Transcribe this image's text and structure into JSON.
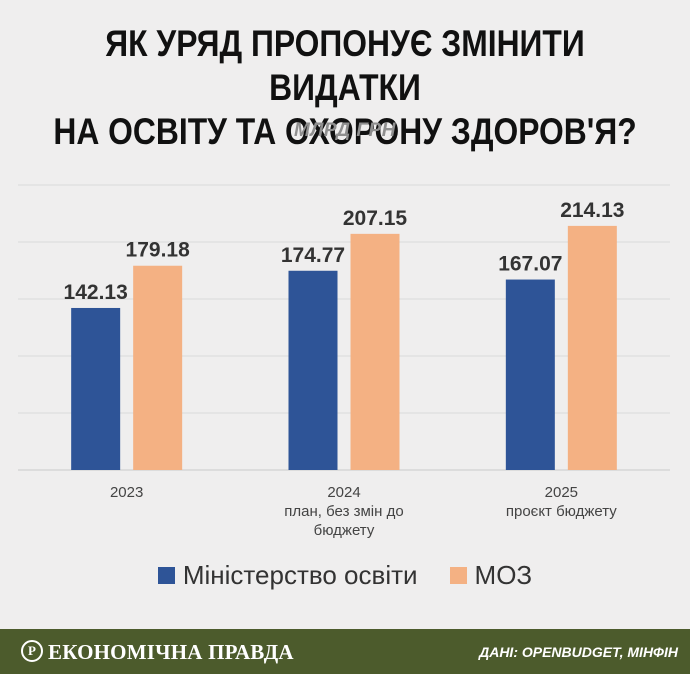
{
  "title_lines": [
    "ЯК УРЯД ПРОПОНУЄ ЗМІНИТИ ВИДАТКИ",
    "НА ОСВІТУ ТА ОХОРОНУ ЗДОРОВ'Я?"
  ],
  "subtitle": "МЛРД ГРН",
  "colors": {
    "education": "#2e5497",
    "health": "#f4b183",
    "background": "#efeeee",
    "footer": "#4c5b2c"
  },
  "chart_data": {
    "type": "bar",
    "categories": [
      [
        "2023"
      ],
      [
        "2024",
        "план, без змін до",
        "бюджету"
      ],
      [
        "2025",
        "проєкт бюджету"
      ]
    ],
    "series": [
      {
        "name": "Міністерство освіти",
        "values": [
          142.13,
          174.77,
          167.07
        ],
        "labels": [
          "142.13",
          "174.77",
          "167.07"
        ]
      },
      {
        "name": "МОЗ",
        "values": [
          179.18,
          207.15,
          214.13
        ],
        "labels": [
          "179.18",
          "207.15",
          "214.13"
        ]
      }
    ],
    "ylim": [
      0,
      250
    ],
    "grid": true,
    "legend": "bottom"
  },
  "footer": {
    "logo_letter": "Р",
    "brand": "ЕКОНОМІЧНА ПРАВДА",
    "source": "ДАНІ: OPENBUDGET, МІНФІН"
  }
}
